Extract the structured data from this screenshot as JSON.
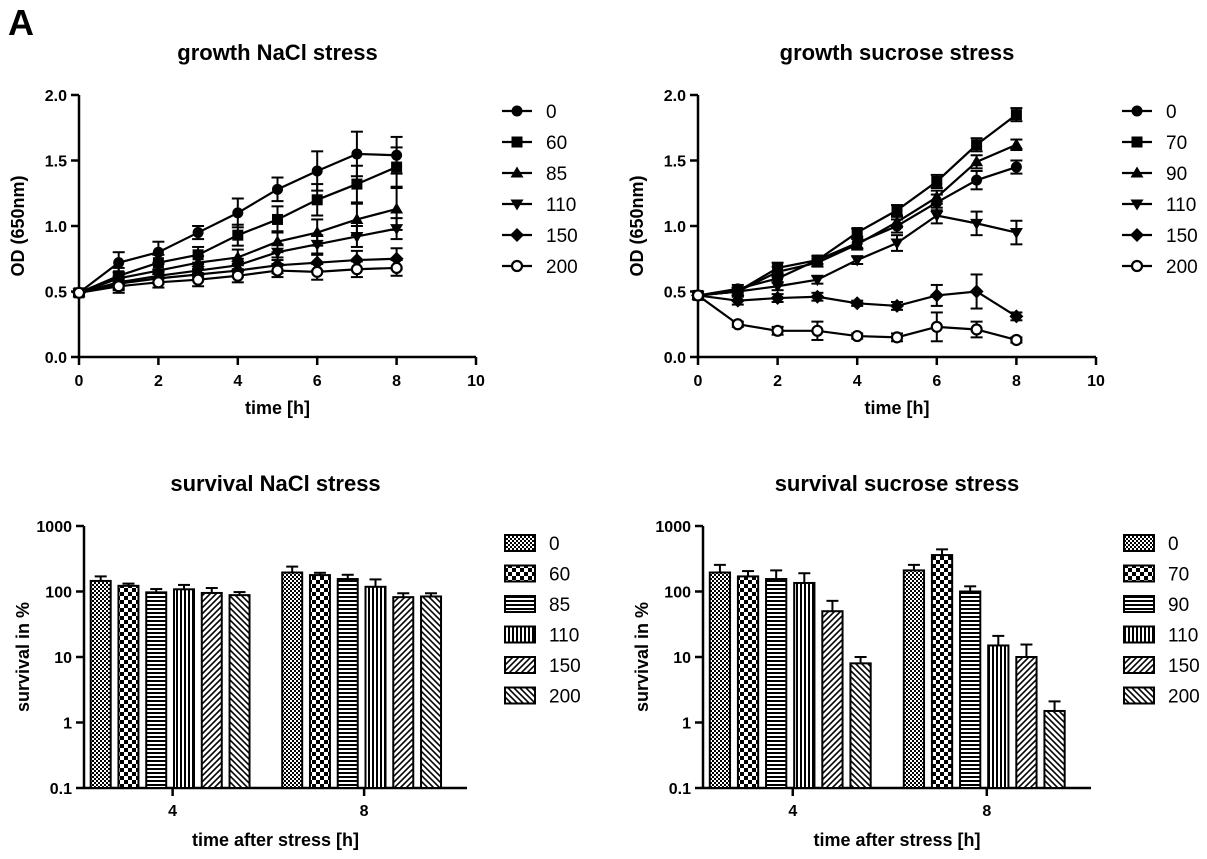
{
  "figure": {
    "panel_label": "A"
  },
  "chart_data": [
    {
      "type": "line",
      "title": "growth NaCl stress",
      "xlabel": "time [h]",
      "ylabel": "OD (650nm)",
      "xlim": [
        0,
        10
      ],
      "ylim": [
        0,
        2.0
      ],
      "xticks": [
        0,
        2,
        4,
        6,
        8,
        10
      ],
      "yticks": [
        0.0,
        0.5,
        1.0,
        1.5,
        2.0
      ],
      "xtick_labels": [
        "0",
        "2",
        "4",
        "6",
        "8",
        "10"
      ],
      "ytick_labels": [
        "0.0",
        "0.5",
        "1.0",
        "1.5",
        "2.0"
      ],
      "legend_position": "right",
      "grid": false,
      "x": [
        0,
        1,
        2,
        3,
        4,
        5,
        6,
        7,
        8
      ],
      "series": [
        {
          "name": "0",
          "marker": "circle",
          "values": [
            0.49,
            0.72,
            0.8,
            0.95,
            1.1,
            1.28,
            1.42,
            1.55,
            1.54
          ],
          "errors": [
            0.02,
            0.08,
            0.08,
            0.05,
            0.11,
            0.09,
            0.15,
            0.17,
            0.14
          ]
        },
        {
          "name": "60",
          "marker": "square",
          "values": [
            0.49,
            0.62,
            0.72,
            0.78,
            0.93,
            1.05,
            1.2,
            1.32,
            1.45
          ],
          "errors": [
            0.02,
            0.06,
            0.06,
            0.06,
            0.08,
            0.1,
            0.12,
            0.14,
            0.15
          ]
        },
        {
          "name": "85",
          "marker": "triangle-up",
          "values": [
            0.49,
            0.6,
            0.66,
            0.72,
            0.76,
            0.88,
            0.95,
            1.05,
            1.13
          ],
          "errors": [
            0.02,
            0.05,
            0.05,
            0.05,
            0.06,
            0.08,
            0.1,
            0.12,
            0.16
          ]
        },
        {
          "name": "110",
          "marker": "triangle-down",
          "values": [
            0.49,
            0.57,
            0.62,
            0.66,
            0.7,
            0.8,
            0.86,
            0.92,
            0.98
          ],
          "errors": [
            0.02,
            0.05,
            0.05,
            0.05,
            0.05,
            0.06,
            0.07,
            0.08,
            0.08
          ]
        },
        {
          "name": "150",
          "marker": "diamond",
          "values": [
            0.49,
            0.56,
            0.6,
            0.63,
            0.66,
            0.7,
            0.72,
            0.74,
            0.75
          ],
          "errors": [
            0.02,
            0.05,
            0.04,
            0.04,
            0.05,
            0.06,
            0.06,
            0.07,
            0.08
          ]
        },
        {
          "name": "200",
          "marker": "circle-open",
          "values": [
            0.49,
            0.54,
            0.57,
            0.59,
            0.62,
            0.66,
            0.65,
            0.67,
            0.68
          ],
          "errors": [
            0.02,
            0.05,
            0.04,
            0.05,
            0.05,
            0.05,
            0.06,
            0.06,
            0.06
          ]
        }
      ]
    },
    {
      "type": "line",
      "title": "growth sucrose stress",
      "xlabel": "time [h]",
      "ylabel": "OD (650nm)",
      "xlim": [
        0,
        10
      ],
      "ylim": [
        0,
        2.0
      ],
      "xticks": [
        0,
        2,
        4,
        6,
        8,
        10
      ],
      "yticks": [
        0.0,
        0.5,
        1.0,
        1.5,
        2.0
      ],
      "xtick_labels": [
        "0",
        "2",
        "4",
        "6",
        "8",
        "10"
      ],
      "ytick_labels": [
        "0.0",
        "0.5",
        "1.0",
        "1.5",
        "2.0"
      ],
      "legend_position": "right",
      "grid": false,
      "x": [
        0,
        1,
        2,
        3,
        4,
        5,
        6,
        7,
        8
      ],
      "series": [
        {
          "name": "0",
          "marker": "circle",
          "values": [
            0.47,
            0.52,
            0.6,
            0.74,
            0.87,
            1.0,
            1.18,
            1.35,
            1.45
          ],
          "errors": [
            0.02,
            0.03,
            0.03,
            0.03,
            0.04,
            0.05,
            0.06,
            0.07,
            0.05
          ]
        },
        {
          "name": "70",
          "marker": "square",
          "values": [
            0.47,
            0.5,
            0.68,
            0.74,
            0.95,
            1.12,
            1.34,
            1.62,
            1.85
          ],
          "errors": [
            0.02,
            0.03,
            0.04,
            0.03,
            0.03,
            0.04,
            0.05,
            0.05,
            0.05
          ]
        },
        {
          "name": "90",
          "marker": "triangle-up",
          "values": [
            0.47,
            0.5,
            0.65,
            0.72,
            0.86,
            1.03,
            1.22,
            1.49,
            1.62
          ],
          "errors": [
            0.02,
            0.03,
            0.04,
            0.03,
            0.04,
            0.04,
            0.05,
            0.05,
            0.04
          ]
        },
        {
          "name": "110",
          "marker": "triangle-down",
          "values": [
            0.47,
            0.5,
            0.54,
            0.59,
            0.74,
            0.87,
            1.08,
            1.02,
            0.95
          ],
          "errors": [
            0.02,
            0.03,
            0.03,
            0.03,
            0.03,
            0.06,
            0.06,
            0.09,
            0.09
          ]
        },
        {
          "name": "150",
          "marker": "diamond",
          "values": [
            0.47,
            0.43,
            0.45,
            0.46,
            0.41,
            0.39,
            0.47,
            0.5,
            0.31
          ],
          "errors": [
            0.02,
            0.03,
            0.03,
            0.03,
            0.02,
            0.03,
            0.08,
            0.13,
            0.03
          ]
        },
        {
          "name": "200",
          "marker": "circle-open",
          "values": [
            0.47,
            0.25,
            0.2,
            0.2,
            0.16,
            0.15,
            0.23,
            0.21,
            0.13
          ],
          "errors": [
            0.02,
            0.02,
            0.03,
            0.07,
            0.02,
            0.03,
            0.11,
            0.06,
            0.02
          ]
        }
      ]
    },
    {
      "type": "bar",
      "title": "survival NaCl stress",
      "xlabel": "time after stress [h]",
      "ylabel": "survival in %",
      "yscale": "log",
      "ylim": [
        0.1,
        1000
      ],
      "yticks": [
        0.1,
        1,
        10,
        100,
        1000
      ],
      "ytick_labels": [
        "0.1",
        "1",
        "10",
        "100",
        "1000"
      ],
      "categories": [
        "4",
        "8"
      ],
      "legend_position": "right",
      "grid": false,
      "series": [
        {
          "name": "0",
          "pattern": "checker-fine",
          "values": [
            145,
            195
          ],
          "errors": [
            25,
            45
          ]
        },
        {
          "name": "60",
          "pattern": "checker-coarse",
          "values": [
            122,
            178
          ],
          "errors": [
            10,
            15
          ]
        },
        {
          "name": "85",
          "pattern": "horizontal",
          "values": [
            97,
            155
          ],
          "errors": [
            12,
            25
          ]
        },
        {
          "name": "110",
          "pattern": "vertical",
          "values": [
            108,
            118
          ],
          "errors": [
            18,
            35
          ]
        },
        {
          "name": "150",
          "pattern": "diagonal-up",
          "values": [
            95,
            82
          ],
          "errors": [
            18,
            12
          ]
        },
        {
          "name": "200",
          "pattern": "diagonal-down",
          "values": [
            88,
            84
          ],
          "errors": [
            10,
            10
          ]
        }
      ]
    },
    {
      "type": "bar",
      "title": "survival sucrose stress",
      "xlabel": "time after stress [h]",
      "ylabel": "survival in %",
      "yscale": "log",
      "ylim": [
        0.1,
        1000
      ],
      "yticks": [
        0.1,
        1,
        10,
        100,
        1000
      ],
      "ytick_labels": [
        "0.1",
        "1",
        "10",
        "100",
        "1000"
      ],
      "categories": [
        "4",
        "8"
      ],
      "legend_position": "right",
      "grid": false,
      "series": [
        {
          "name": "0",
          "pattern": "checker-fine",
          "values": [
            195,
            210
          ],
          "errors": [
            60,
            45
          ]
        },
        {
          "name": "70",
          "pattern": "checker-coarse",
          "values": [
            170,
            360
          ],
          "errors": [
            35,
            80
          ]
        },
        {
          "name": "90",
          "pattern": "horizontal",
          "values": [
            155,
            100
          ],
          "errors": [
            55,
            20
          ]
        },
        {
          "name": "110",
          "pattern": "vertical",
          "values": [
            135,
            15
          ],
          "errors": [
            55,
            6
          ]
        },
        {
          "name": "150",
          "pattern": "diagonal-up",
          "values": [
            50,
            10
          ],
          "errors": [
            22,
            5.5
          ]
        },
        {
          "name": "200",
          "pattern": "diagonal-down",
          "values": [
            8,
            1.5
          ],
          "errors": [
            2,
            0.6
          ]
        }
      ]
    }
  ]
}
